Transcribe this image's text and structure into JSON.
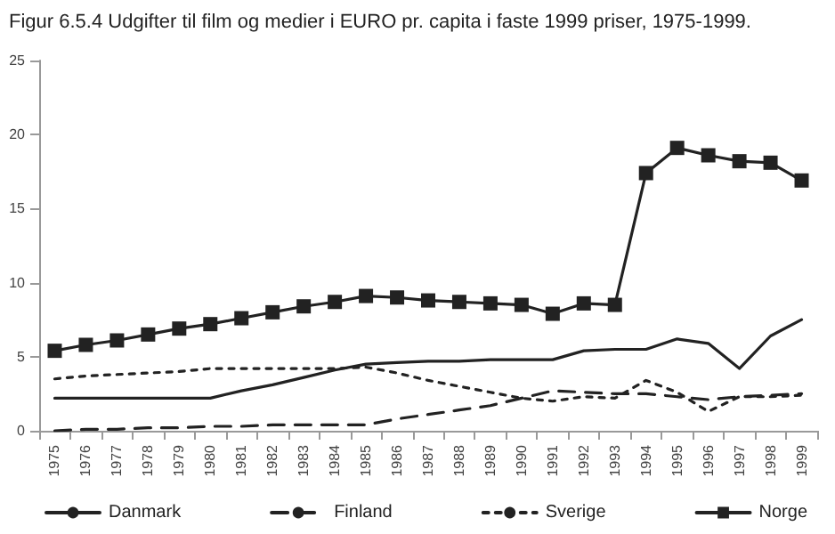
{
  "chart_data": {
    "type": "line",
    "title": "Figur 6.5.4 Udgifter til film og medier i EURO pr. capita i faste 1999 priser, 1975-1999.",
    "categories": [
      "1975",
      "1976",
      "1977",
      "1978",
      "1979",
      "1980",
      "1981",
      "1982",
      "1983",
      "1984",
      "1985",
      "1986",
      "1987",
      "1988",
      "1989",
      "1990",
      "1991",
      "1992",
      "1993",
      "1994",
      "1995",
      "1996",
      "1997",
      "1998",
      "1999"
    ],
    "series": [
      {
        "name": "Danmark",
        "color": "#222222",
        "line_style": "solid",
        "marker": "none",
        "values": [
          2.2,
          2.2,
          2.2,
          2.2,
          2.2,
          2.2,
          2.7,
          3.1,
          3.6,
          4.1,
          4.5,
          4.6,
          4.7,
          4.7,
          4.8,
          4.8,
          4.8,
          5.4,
          5.5,
          5.5,
          6.2,
          5.9,
          4.2,
          6.4,
          7.5
        ]
      },
      {
        "name": "Finland",
        "color": "#222222",
        "line_style": "dashed",
        "marker": "none",
        "values": [
          0,
          0.1,
          0.1,
          0.2,
          0.2,
          0.3,
          0.3,
          0.4,
          0.4,
          0.4,
          0.4,
          0.8,
          1.1,
          1.4,
          1.7,
          2.2,
          2.7,
          2.6,
          2.5,
          2.5,
          2.3,
          2.1,
          2.3,
          2.4,
          2.5
        ]
      },
      {
        "name": "Sverige",
        "color": "#222222",
        "line_style": "dotted",
        "marker": "none",
        "values": [
          3.5,
          3.7,
          3.8,
          3.9,
          4.0,
          4.2,
          4.2,
          4.2,
          4.2,
          4.2,
          4.3,
          3.9,
          3.4,
          3.0,
          2.6,
          2.2,
          2.0,
          2.3,
          2.2,
          3.4,
          2.6,
          1.3,
          2.3,
          2.3,
          2.4
        ]
      },
      {
        "name": "Norge",
        "color": "#222222",
        "line_style": "solid",
        "marker": "square",
        "values": [
          5.4,
          5.8,
          6.1,
          6.5,
          6.9,
          7.2,
          7.6,
          8.0,
          8.4,
          8.7,
          9.1,
          9.0,
          8.8,
          8.7,
          8.6,
          8.5,
          7.9,
          8.6,
          8.5,
          17.4,
          19.1,
          18.6,
          18.2,
          18.1,
          16.9
        ]
      }
    ],
    "ylim": [
      0,
      25
    ],
    "yticks": [
      0,
      5,
      10,
      15,
      20,
      25
    ],
    "grid": false,
    "legend": "bottom"
  }
}
